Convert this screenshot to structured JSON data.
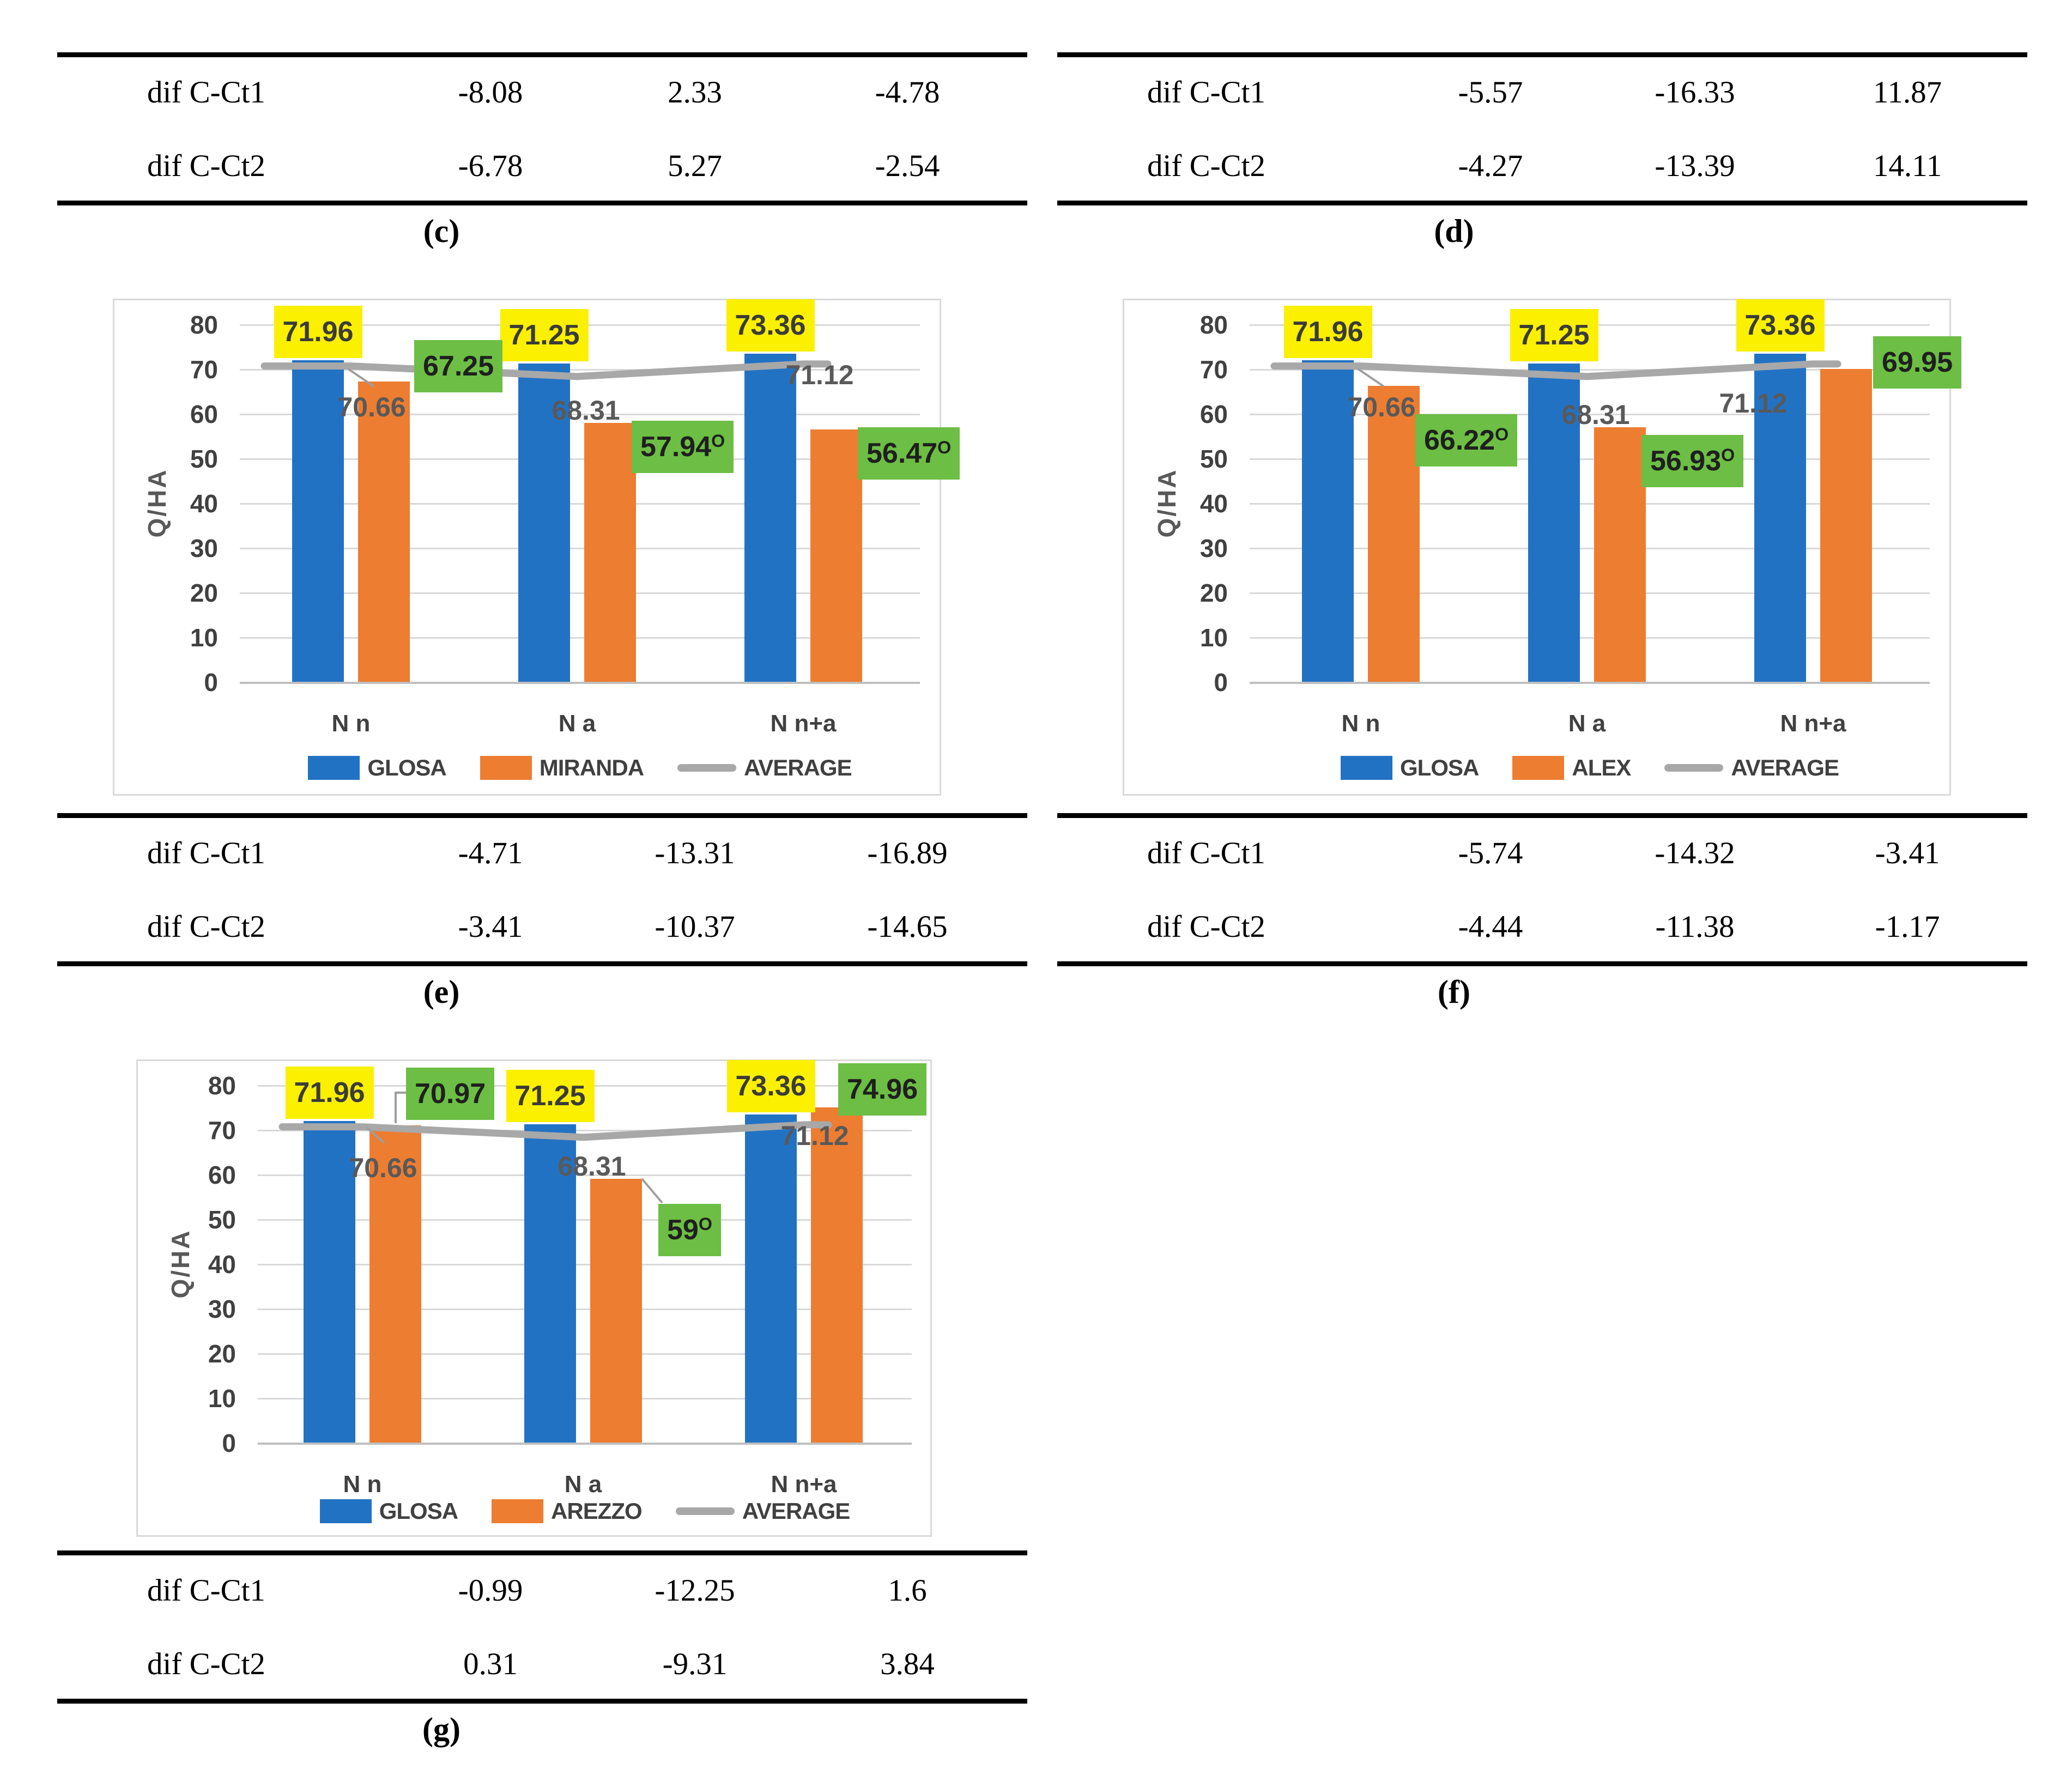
{
  "figure": {
    "superscript_marker": "O",
    "tables": [
      {
        "id": "c",
        "caption": "(c)",
        "rows": [
          {
            "label": "dif C-Ct1",
            "values": [
              "-8.08",
              "2.33",
              "-4.78"
            ]
          },
          {
            "label": "dif C-Ct2",
            "values": [
              "-6.78",
              "5.27",
              "-2.54"
            ]
          }
        ]
      },
      {
        "id": "d",
        "caption": "(d)",
        "rows": [
          {
            "label": "dif C-Ct1",
            "values": [
              "-5.57",
              "-16.33",
              "11.87"
            ]
          },
          {
            "label": "dif C-Ct2",
            "values": [
              "-4.27",
              "-13.39",
              "14.11"
            ]
          }
        ]
      },
      {
        "id": "e",
        "caption": "(e)",
        "rows": [
          {
            "label": "dif C-Ct1",
            "values": [
              "-4.71",
              "-13.31",
              "-16.89"
            ]
          },
          {
            "label": "dif C-Ct2",
            "values": [
              "-3.41",
              "-10.37",
              "-14.65"
            ]
          }
        ]
      },
      {
        "id": "f",
        "caption": "(f)",
        "rows": [
          {
            "label": "dif C-Ct1",
            "values": [
              "-5.74",
              "-14.32",
              "-3.41"
            ]
          },
          {
            "label": "dif C-Ct2",
            "values": [
              "-4.44",
              "-11.38",
              "-1.17"
            ]
          }
        ]
      },
      {
        "id": "g",
        "caption": "(g)",
        "rows": [
          {
            "label": "dif C-Ct1",
            "values": [
              "-0.99",
              "-12.25",
              "1.6"
            ]
          },
          {
            "label": "dif C-Ct2",
            "values": [
              "0.31",
              "-9.31",
              "3.84"
            ]
          }
        ]
      }
    ]
  },
  "colors": {
    "bar_blue": "#2272C4",
    "bar_orange": "#ED7D31",
    "line_gray": "#A8A8A8",
    "label_yellow_bg": "#FAF000",
    "label_yellow_text": "#3B3B3B",
    "label_green_bg": "#6CBE44",
    "label_green_text": "#1F1F1F",
    "avg_label_text": "#595959",
    "table_rule": "#000000"
  },
  "chart_data": [
    {
      "id": "e",
      "type": "bar+line",
      "title": "",
      "ylabel": "Q/HA",
      "xlabel": "",
      "ylim": [
        0,
        80
      ],
      "yticks": [
        "0",
        "10",
        "20",
        "30",
        "40",
        "50",
        "60",
        "70",
        "80"
      ],
      "grid": true,
      "legend_position": "bottom",
      "categories": [
        "N n",
        "N a",
        "N n+a"
      ],
      "series": [
        {
          "name": "GLOSA",
          "type": "bar",
          "color": "#2272C4",
          "values": [
            71.96,
            71.25,
            73.36
          ],
          "labels": [
            "71.96",
            "71.25",
            "73.36"
          ],
          "label_style": "yellow",
          "label_sup": [
            false,
            false,
            false
          ]
        },
        {
          "name": "MIRANDA",
          "type": "bar",
          "color": "#ED7D31",
          "values": [
            67.25,
            57.94,
            56.47
          ],
          "labels": [
            "67.25",
            "57.94",
            "56.47"
          ],
          "label_style": "green",
          "label_sup": [
            false,
            true,
            true
          ]
        },
        {
          "name": "AVERAGE",
          "type": "line",
          "color": "#A8A8A8",
          "values": [
            70.66,
            68.31,
            71.12
          ],
          "labels": [
            "70.66",
            "68.31",
            "71.12"
          ],
          "label_style": "plain"
        }
      ]
    },
    {
      "id": "f",
      "type": "bar+line",
      "title": "",
      "ylabel": "Q/HA",
      "xlabel": "",
      "ylim": [
        0,
        80
      ],
      "yticks": [
        "0",
        "10",
        "20",
        "30",
        "40",
        "50",
        "60",
        "70",
        "80"
      ],
      "grid": true,
      "legend_position": "bottom",
      "categories": [
        "N n",
        "N a",
        "N n+a"
      ],
      "series": [
        {
          "name": "GLOSA",
          "type": "bar",
          "color": "#2272C4",
          "values": [
            71.96,
            71.25,
            73.36
          ],
          "labels": [
            "71.96",
            "71.25",
            "73.36"
          ],
          "label_style": "yellow",
          "label_sup": [
            false,
            false,
            false
          ]
        },
        {
          "name": "ALEX",
          "type": "bar",
          "color": "#ED7D31",
          "values": [
            66.22,
            56.93,
            69.95
          ],
          "labels": [
            "66.22",
            "56.93",
            "69.95"
          ],
          "label_style": "green",
          "label_sup": [
            true,
            true,
            false
          ]
        },
        {
          "name": "AVERAGE",
          "type": "line",
          "color": "#A8A8A8",
          "values": [
            70.66,
            68.31,
            71.12
          ],
          "labels": [
            "70.66",
            "68.31",
            "71.12"
          ],
          "label_style": "plain"
        }
      ]
    },
    {
      "id": "g",
      "type": "bar+line",
      "title": "",
      "ylabel": "Q/HA",
      "xlabel": "",
      "ylim": [
        0,
        80
      ],
      "yticks": [
        "0",
        "10",
        "20",
        "30",
        "40",
        "50",
        "60",
        "70",
        "80"
      ],
      "grid": true,
      "legend_position": "bottom",
      "categories": [
        "N n",
        "N a",
        "N n+a"
      ],
      "series": [
        {
          "name": "GLOSA",
          "type": "bar",
          "color": "#2272C4",
          "values": [
            71.96,
            71.25,
            73.36
          ],
          "labels": [
            "71.96",
            "71.25",
            "73.36"
          ],
          "label_style": "yellow",
          "label_sup": [
            false,
            false,
            false
          ]
        },
        {
          "name": "AREZZO",
          "type": "bar",
          "color": "#ED7D31",
          "values": [
            70.97,
            59,
            74.96
          ],
          "labels": [
            "70.97",
            "59",
            "74.96"
          ],
          "label_style": "green",
          "label_sup": [
            false,
            true,
            false
          ]
        },
        {
          "name": "AVERAGE",
          "type": "line",
          "color": "#A8A8A8",
          "values": [
            70.66,
            68.31,
            71.12
          ],
          "labels": [
            "70.66",
            "68.31",
            "71.12"
          ],
          "label_style": "plain"
        }
      ]
    }
  ]
}
